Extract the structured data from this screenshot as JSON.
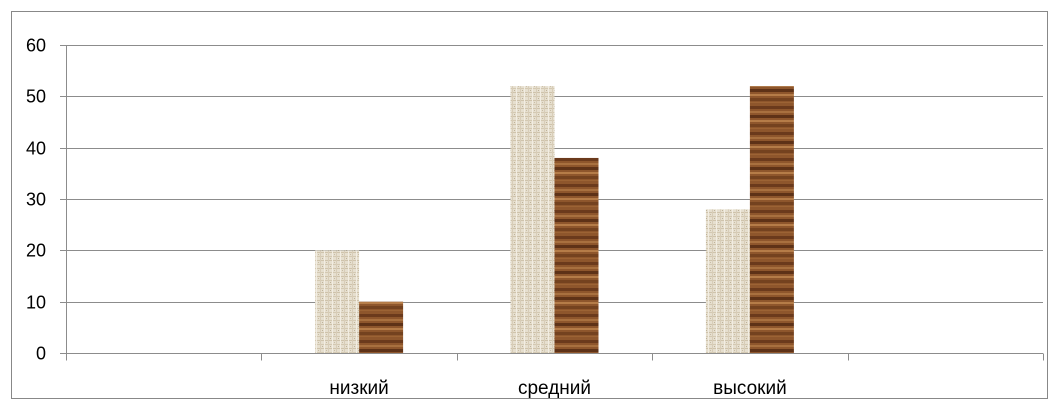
{
  "chart_data": {
    "type": "bar",
    "title": "",
    "xlabel": "",
    "ylabel": "",
    "categories": [
      "",
      "низкий",
      "средний",
      "высокий",
      ""
    ],
    "series": [
      {
        "values": [
          null,
          20,
          52,
          28,
          null
        ],
        "color": "#e4dccb",
        "texture": "burlap"
      },
      {
        "values": [
          null,
          10,
          38,
          52,
          null
        ],
        "color": "#8a5129",
        "texture": "wood"
      }
    ],
    "ylim": [
      0,
      60
    ],
    "yticks": [
      0,
      10,
      20,
      30,
      40,
      50,
      60
    ],
    "grid": true,
    "legend": "none"
  }
}
